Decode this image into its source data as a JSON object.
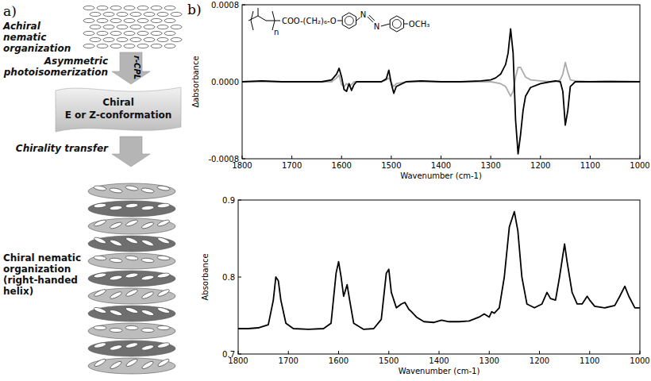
{
  "panel_labels": [
    "a)",
    "b)"
  ],
  "diagram": {
    "top": {
      "label": "Achiral nematic organization"
    },
    "arrow1": {
      "label": "Asymmetric photoisomerization",
      "light": "r-CPL"
    },
    "middle": {
      "lines": [
        "Chiral",
        "E or Z-conformation"
      ]
    },
    "arrow2": {
      "label": "Chirality transfer"
    },
    "bottom": {
      "label": "Chiral nematic organization (right-handed helix)"
    }
  },
  "structure": {
    "repeat": "n",
    "chain": "COO-(CH₂)₆-O",
    "azo": [
      "N",
      "N"
    ],
    "end": "OCH₃"
  },
  "chart_data": [
    {
      "type": "line",
      "x_label": "Wavenumber (cm-1)",
      "y_label": "Δabsorbance",
      "grid": false,
      "xlim": [
        1800,
        1000
      ],
      "xticks": [
        1800,
        1700,
        1600,
        1500,
        1400,
        1300,
        1200,
        1100,
        1000
      ],
      "ylim": [
        -0.0008,
        0.0008
      ],
      "yticks": [
        {
          "value": 0.0008,
          "label": "0.0008"
        },
        {
          "value": 0,
          "label": "0.0000"
        },
        {
          "value": -0.0008,
          "label": "-0.0008"
        }
      ],
      "x": [
        1800,
        1760,
        1720,
        1680,
        1640,
        1620,
        1610,
        1605,
        1600,
        1595,
        1590,
        1585,
        1580,
        1575,
        1570,
        1550,
        1520,
        1510,
        1505,
        1500,
        1495,
        1490,
        1470,
        1440,
        1400,
        1360,
        1320,
        1300,
        1290,
        1280,
        1270,
        1265,
        1260,
        1255,
        1250,
        1245,
        1240,
        1235,
        1230,
        1220,
        1200,
        1180,
        1170,
        1160,
        1155,
        1150,
        1145,
        1140,
        1130,
        1100,
        1060,
        1000
      ],
      "series": [
        {
          "color": "#aaaaaa",
          "line_style": "solid",
          "values": [
            0,
            0,
            0,
            0,
            0,
            0,
            4e-05,
            7e-05,
            -3e-05,
            -5e-05,
            -2e-05,
            -4e-05,
            -3e-05,
            0,
            0,
            0,
            0,
            2e-05,
            4e-05,
            -1e-05,
            -5e-05,
            -2e-05,
            0,
            0,
            0,
            0,
            0,
            0,
            -1e-05,
            -2e-05,
            -5e-05,
            -0.0001,
            -0.00015,
            -0.0001,
            5e-05,
            0.00015,
            0.00015,
            0.0001,
            5e-05,
            2e-05,
            1e-05,
            0,
            0,
            2e-05,
            8e-05,
            0.0002,
            0.0001,
            2e-05,
            1e-05,
            0,
            1e-05,
            0
          ]
        },
        {
          "color": "#000000",
          "line_style": "solid",
          "values": [
            0,
            1e-05,
            0,
            0,
            0,
            2e-05,
            8e-05,
            0.00014,
            5e-05,
            -8e-05,
            -0.0001,
            -2e-05,
            -9e-05,
            -3e-05,
            0,
            0,
            0,
            3e-05,
            0.00012,
            -2e-05,
            -0.00012,
            -5e-05,
            0,
            1e-05,
            0,
            0,
            1e-05,
            2e-05,
            4e-05,
            8e-05,
            0.00018,
            0.0003,
            0.00055,
            0.0003,
            -0.0004,
            -0.00075,
            -0.00055,
            -0.0003,
            -0.00015,
            -6e-05,
            -2e-05,
            0,
            1e-05,
            0,
            -0.0001,
            -0.00045,
            -0.0003,
            -5e-05,
            0,
            0,
            0,
            0
          ]
        }
      ]
    },
    {
      "type": "line",
      "x_label": "Wavenumber (cm-1)",
      "y_label": "Absorbance",
      "grid": false,
      "xlim": [
        1800,
        1000
      ],
      "xticks": [
        1800,
        1700,
        1600,
        1500,
        1400,
        1300,
        1200,
        1100,
        1000
      ],
      "ylim": [
        0.7,
        0.9
      ],
      "yticks": [
        0.7,
        0.8,
        0.9
      ],
      "x": [
        1800,
        1780,
        1760,
        1740,
        1730,
        1725,
        1720,
        1715,
        1705,
        1690,
        1660,
        1630,
        1615,
        1605,
        1600,
        1595,
        1590,
        1583,
        1578,
        1570,
        1550,
        1530,
        1515,
        1505,
        1500,
        1495,
        1485,
        1475,
        1468,
        1460,
        1455,
        1445,
        1430,
        1410,
        1395,
        1380,
        1360,
        1340,
        1320,
        1310,
        1300,
        1295,
        1290,
        1280,
        1270,
        1260,
        1250,
        1243,
        1235,
        1225,
        1210,
        1195,
        1185,
        1178,
        1168,
        1160,
        1150,
        1145,
        1135,
        1125,
        1115,
        1105,
        1100,
        1090,
        1070,
        1050,
        1040,
        1030,
        1022,
        1010,
        1000
      ],
      "series": [
        {
          "color": "#000000",
          "line_style": "solid",
          "values": [
            0.733,
            0.733,
            0.734,
            0.738,
            0.77,
            0.8,
            0.795,
            0.77,
            0.74,
            0.733,
            0.732,
            0.733,
            0.74,
            0.805,
            0.82,
            0.8,
            0.775,
            0.79,
            0.77,
            0.74,
            0.732,
            0.733,
            0.745,
            0.805,
            0.81,
            0.78,
            0.76,
            0.765,
            0.767,
            0.758,
            0.755,
            0.748,
            0.742,
            0.741,
            0.744,
            0.742,
            0.742,
            0.743,
            0.748,
            0.752,
            0.748,
            0.755,
            0.753,
            0.76,
            0.8,
            0.865,
            0.885,
            0.86,
            0.8,
            0.765,
            0.76,
            0.765,
            0.78,
            0.772,
            0.77,
            0.8,
            0.843,
            0.82,
            0.78,
            0.765,
            0.765,
            0.775,
            0.77,
            0.762,
            0.76,
            0.763,
            0.775,
            0.788,
            0.775,
            0.76,
            0.76
          ]
        }
      ]
    }
  ]
}
